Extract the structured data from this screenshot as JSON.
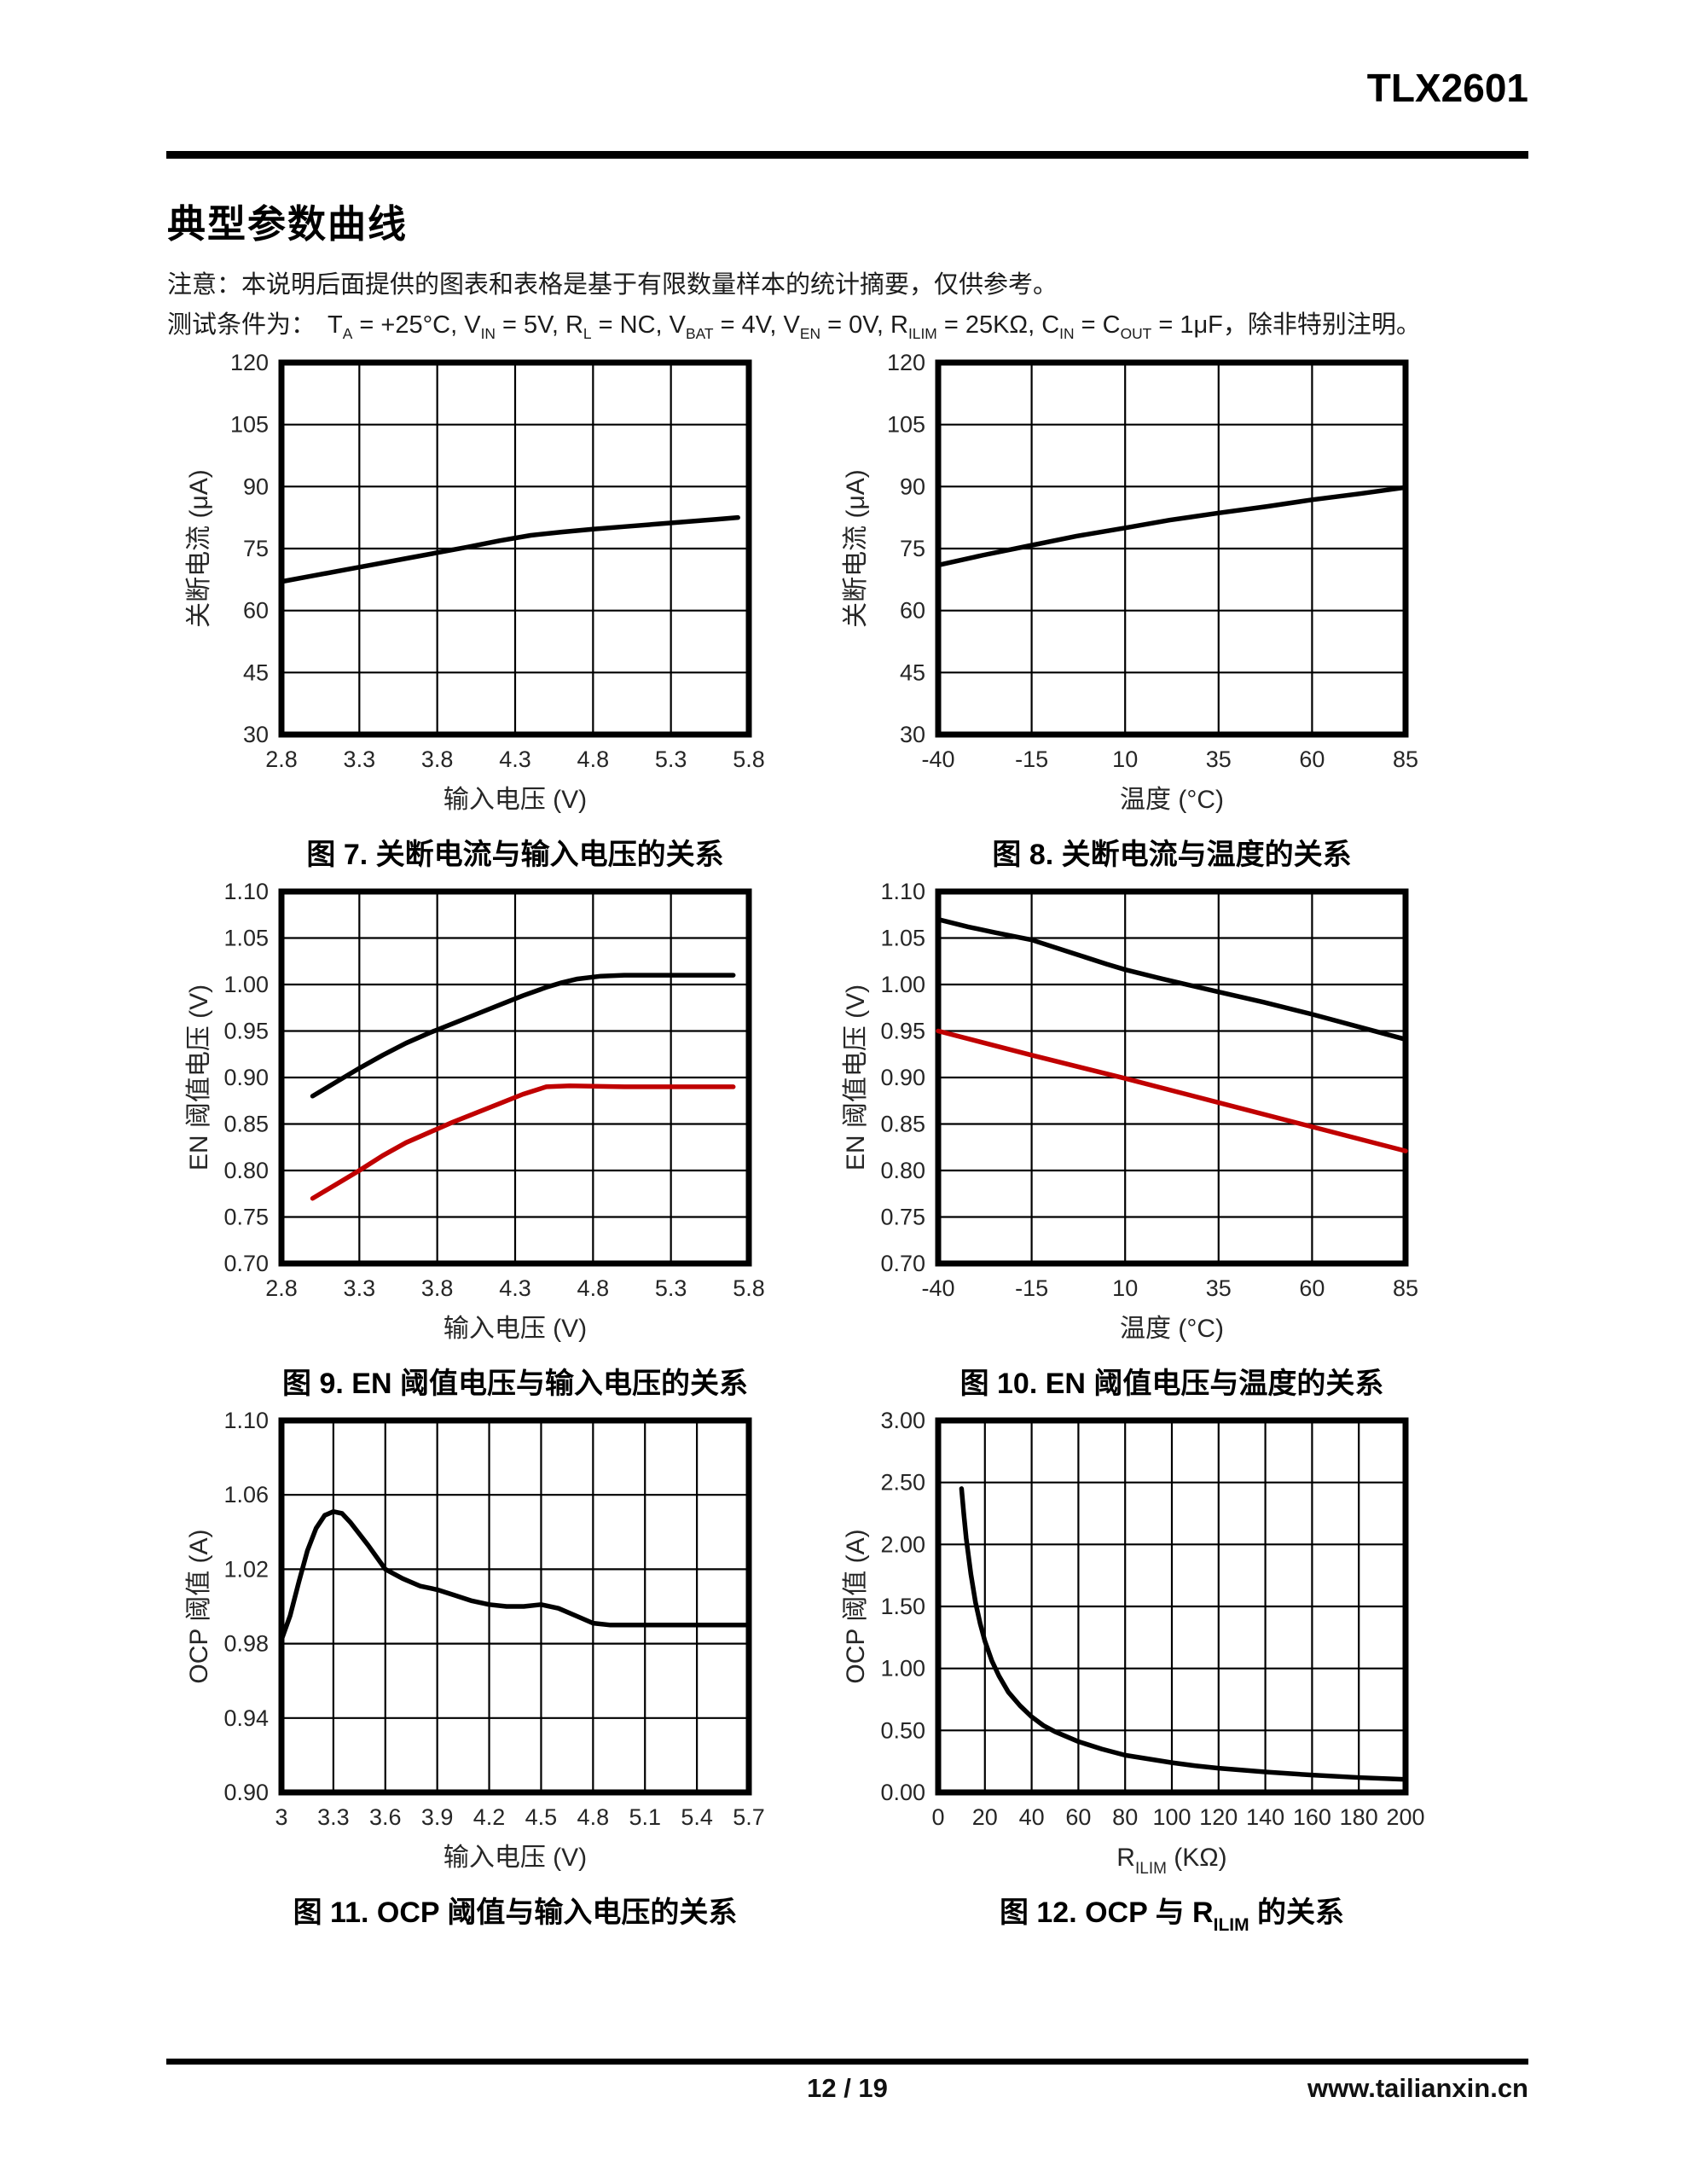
{
  "header": {
    "doc_title": "TLX2601"
  },
  "section": {
    "title": "典型参数曲线",
    "note": "注意：本说明后面提供的图表和表格是基于有限数量样本的统计摘要，仅供参考。",
    "conditions_prefix": "测试条件为：",
    "conditions_parts": [
      {
        "t": "T"
      },
      {
        "t": "A",
        "sub": true
      },
      {
        "t": " = +25°C, V"
      },
      {
        "t": "IN",
        "sub": true
      },
      {
        "t": " = 5V, R"
      },
      {
        "t": "L",
        "sub": true
      },
      {
        "t": " = NC, V"
      },
      {
        "t": "BAT",
        "sub": true
      },
      {
        "t": " = 4V, V"
      },
      {
        "t": "EN",
        "sub": true
      },
      {
        "t": " = 0V, R"
      },
      {
        "t": "ILIM",
        "sub": true
      },
      {
        "t": " = 25KΩ, C"
      },
      {
        "t": "IN",
        "sub": true
      },
      {
        "t": " = C"
      },
      {
        "t": "OUT",
        "sub": true
      },
      {
        "t": " = 1μF，除非特别注明。"
      }
    ]
  },
  "footer": {
    "page_number": "12 / 19",
    "website": "www.tailianxin.cn"
  },
  "colors": {
    "series_black": "#000000",
    "series_red": "#c00000",
    "grid": "#000000",
    "tick_text": "#262626"
  },
  "chart_data": [
    {
      "figure": "7",
      "type": "line",
      "caption_parts": [
        {
          "t": "图 7. 关断电流与输入电压的关系"
        }
      ],
      "ylabel": "关断电流 (μA)",
      "xlabel_parts": [
        {
          "t": "输入电压 (V)"
        }
      ],
      "xlim": [
        2.8,
        5.8
      ],
      "ylim": [
        30,
        120
      ],
      "grid": true,
      "legend": "none",
      "xticks": [
        {
          "v": 2.8,
          "label": "2.8"
        },
        {
          "v": 3.3,
          "label": "3.3"
        },
        {
          "v": 3.8,
          "label": "3.8"
        },
        {
          "v": 4.3,
          "label": "4.3"
        },
        {
          "v": 4.8,
          "label": "4.8"
        },
        {
          "v": 5.3,
          "label": "5.3"
        },
        {
          "v": 5.8,
          "label": "5.8"
        }
      ],
      "yticks": [
        {
          "v": 30,
          "label": "30"
        },
        {
          "v": 45,
          "label": "45"
        },
        {
          "v": 60,
          "label": "60"
        },
        {
          "v": 75,
          "label": "75"
        },
        {
          "v": 90,
          "label": "90"
        },
        {
          "v": 105,
          "label": "105"
        },
        {
          "v": 120,
          "label": "120"
        }
      ],
      "series": [
        {
          "name": "shutdown-current",
          "color": "#000000",
          "x": [
            2.8,
            3.0,
            3.2,
            3.4,
            3.6,
            3.8,
            4.0,
            4.2,
            4.4,
            4.6,
            4.8,
            5.0,
            5.2,
            5.4,
            5.6,
            5.73
          ],
          "y": [
            67,
            68.4,
            69.8,
            71.2,
            72.6,
            74,
            75.4,
            76.9,
            78.2,
            79,
            79.7,
            80.3,
            80.9,
            81.5,
            82.1,
            82.5
          ]
        }
      ]
    },
    {
      "figure": "8",
      "type": "line",
      "caption_parts": [
        {
          "t": "图 8. 关断电流与温度的关系"
        }
      ],
      "ylabel": "关断电流 (μA)",
      "xlabel_parts": [
        {
          "t": "温度 (°C)"
        }
      ],
      "xlim": [
        -40,
        85
      ],
      "ylim": [
        30,
        120
      ],
      "grid": true,
      "legend": "none",
      "xticks": [
        {
          "v": -40,
          "label": "-40"
        },
        {
          "v": -15,
          "label": "-15"
        },
        {
          "v": 10,
          "label": "10"
        },
        {
          "v": 35,
          "label": "35"
        },
        {
          "v": 60,
          "label": "60"
        },
        {
          "v": 85,
          "label": "85"
        }
      ],
      "yticks": [
        {
          "v": 30,
          "label": "30"
        },
        {
          "v": 45,
          "label": "45"
        },
        {
          "v": 60,
          "label": "60"
        },
        {
          "v": 75,
          "label": "75"
        },
        {
          "v": 90,
          "label": "90"
        },
        {
          "v": 105,
          "label": "105"
        },
        {
          "v": 120,
          "label": "120"
        }
      ],
      "series": [
        {
          "name": "shutdown-current",
          "color": "#000000",
          "x": [
            -40,
            -28,
            -15,
            -3,
            10,
            22,
            35,
            48,
            60,
            73,
            85
          ],
          "y": [
            71,
            73.4,
            75.8,
            78.0,
            80.0,
            81.9,
            83.6,
            85.2,
            86.8,
            88.3,
            89.8
          ]
        }
      ]
    },
    {
      "figure": "9",
      "type": "line",
      "caption_parts": [
        {
          "t": "图 9. EN 阈值电压与输入电压的关系"
        }
      ],
      "ylabel": "EN 阈值电压 (V)",
      "xlabel_parts": [
        {
          "t": "输入电压 (V)"
        }
      ],
      "xlim": [
        2.8,
        5.8
      ],
      "ylim": [
        0.7,
        1.1
      ],
      "grid": true,
      "legend": "none",
      "xticks": [
        {
          "v": 2.8,
          "label": "2.8"
        },
        {
          "v": 3.3,
          "label": "3.3"
        },
        {
          "v": 3.8,
          "label": "3.8"
        },
        {
          "v": 4.3,
          "label": "4.3"
        },
        {
          "v": 4.8,
          "label": "4.8"
        },
        {
          "v": 5.3,
          "label": "5.3"
        },
        {
          "v": 5.8,
          "label": "5.8"
        }
      ],
      "yticks": [
        {
          "v": 0.7,
          "label": "0.70"
        },
        {
          "v": 0.75,
          "label": "0.75"
        },
        {
          "v": 0.8,
          "label": "0.80"
        },
        {
          "v": 0.85,
          "label": "0.85"
        },
        {
          "v": 0.9,
          "label": "0.90"
        },
        {
          "v": 0.95,
          "label": "0.95"
        },
        {
          "v": 1.0,
          "label": "1.00"
        },
        {
          "v": 1.05,
          "label": "1.05"
        },
        {
          "v": 1.1,
          "label": "1.10"
        }
      ],
      "series": [
        {
          "name": "en-threshold-black",
          "color": "#000000",
          "x": [
            3.0,
            3.15,
            3.3,
            3.45,
            3.6,
            3.75,
            3.9,
            4.05,
            4.2,
            4.35,
            4.5,
            4.6,
            4.7,
            4.85,
            5.0,
            5.2,
            5.4,
            5.7
          ],
          "y": [
            0.88,
            0.895,
            0.91,
            0.924,
            0.937,
            0.948,
            0.958,
            0.968,
            0.978,
            0.988,
            0.997,
            1.002,
            1.006,
            1.009,
            1.01,
            1.01,
            1.01,
            1.01
          ]
        },
        {
          "name": "en-threshold-red",
          "color": "#c00000",
          "x": [
            3.0,
            3.15,
            3.3,
            3.45,
            3.6,
            3.75,
            3.9,
            4.05,
            4.2,
            4.35,
            4.5,
            4.65,
            5.0,
            5.4,
            5.7
          ],
          "y": [
            0.77,
            0.785,
            0.8,
            0.816,
            0.83,
            0.841,
            0.852,
            0.862,
            0.872,
            0.882,
            0.89,
            0.891,
            0.89,
            0.89,
            0.89
          ]
        }
      ]
    },
    {
      "figure": "10",
      "type": "line",
      "caption_parts": [
        {
          "t": "图 10. EN 阈值电压与温度的关系"
        }
      ],
      "ylabel": "EN 阈值电压 (V)",
      "xlabel_parts": [
        {
          "t": "温度 (°C)"
        }
      ],
      "xlim": [
        -40,
        85
      ],
      "ylim": [
        0.7,
        1.1
      ],
      "grid": true,
      "legend": "none",
      "xticks": [
        {
          "v": -40,
          "label": "-40"
        },
        {
          "v": -15,
          "label": "-15"
        },
        {
          "v": 10,
          "label": "10"
        },
        {
          "v": 35,
          "label": "35"
        },
        {
          "v": 60,
          "label": "60"
        },
        {
          "v": 85,
          "label": "85"
        }
      ],
      "yticks": [
        {
          "v": 0.7,
          "label": "0.70"
        },
        {
          "v": 0.75,
          "label": "0.75"
        },
        {
          "v": 0.8,
          "label": "0.80"
        },
        {
          "v": 0.85,
          "label": "0.85"
        },
        {
          "v": 0.9,
          "label": "0.90"
        },
        {
          "v": 0.95,
          "label": "0.95"
        },
        {
          "v": 1.0,
          "label": "1.00"
        },
        {
          "v": 1.05,
          "label": "1.05"
        },
        {
          "v": 1.1,
          "label": "1.10"
        }
      ],
      "series": [
        {
          "name": "en-threshold-black",
          "color": "#000000",
          "x": [
            -40,
            -32,
            -25,
            -15,
            -5,
            5,
            10,
            20,
            35,
            47,
            60,
            72,
            85
          ],
          "y": [
            1.07,
            1.062,
            1.056,
            1.048,
            1.035,
            1.022,
            1.016,
            1.006,
            0.992,
            0.981,
            0.968,
            0.955,
            0.941
          ]
        },
        {
          "name": "en-threshold-red",
          "color": "#c00000",
          "x": [
            -40,
            -15,
            10,
            35,
            60,
            85
          ],
          "y": [
            0.95,
            0.924,
            0.899,
            0.873,
            0.847,
            0.821
          ]
        }
      ]
    },
    {
      "figure": "11",
      "type": "line",
      "caption_parts": [
        {
          "t": "图 11. OCP 阈值与输入电压的关系"
        }
      ],
      "ylabel": "OCP 阈值 (A)",
      "xlabel_parts": [
        {
          "t": "输入电压 (V)"
        }
      ],
      "xlim": [
        3.0,
        5.7
      ],
      "ylim": [
        0.9,
        1.1
      ],
      "grid": true,
      "legend": "none",
      "xticks": [
        {
          "v": 3.0,
          "label": "3"
        },
        {
          "v": 3.3,
          "label": "3.3"
        },
        {
          "v": 3.6,
          "label": "3.6"
        },
        {
          "v": 3.9,
          "label": "3.9"
        },
        {
          "v": 4.2,
          "label": "4.2"
        },
        {
          "v": 4.5,
          "label": "4.5"
        },
        {
          "v": 4.8,
          "label": "4.8"
        },
        {
          "v": 5.1,
          "label": "5.1"
        },
        {
          "v": 5.4,
          "label": "5.4"
        },
        {
          "v": 5.7,
          "label": "5.7"
        }
      ],
      "yticks": [
        {
          "v": 0.9,
          "label": "0.90"
        },
        {
          "v": 0.94,
          "label": "0.94"
        },
        {
          "v": 0.98,
          "label": "0.98"
        },
        {
          "v": 1.02,
          "label": "1.02"
        },
        {
          "v": 1.06,
          "label": "1.06"
        },
        {
          "v": 1.1,
          "label": "1.10"
        }
      ],
      "series": [
        {
          "name": "ocp-threshold",
          "color": "#000000",
          "x": [
            3.0,
            3.05,
            3.1,
            3.15,
            3.2,
            3.25,
            3.3,
            3.35,
            3.4,
            3.5,
            3.6,
            3.7,
            3.8,
            3.9,
            4.0,
            4.1,
            4.2,
            4.3,
            4.4,
            4.5,
            4.6,
            4.7,
            4.8,
            4.9,
            5.0,
            5.2,
            5.4,
            5.7
          ],
          "y": [
            0.982,
            0.995,
            1.013,
            1.03,
            1.042,
            1.049,
            1.051,
            1.05,
            1.045,
            1.033,
            1.02,
            1.015,
            1.011,
            1.009,
            1.006,
            1.003,
            1.001,
            1.0,
            1.0,
            1.001,
            0.999,
            0.995,
            0.991,
            0.99,
            0.99,
            0.99,
            0.99,
            0.99
          ]
        }
      ]
    },
    {
      "figure": "12",
      "type": "line",
      "caption_parts": [
        {
          "t": "图 12. OCP 与 R"
        },
        {
          "t": "ILIM",
          "sub": true
        },
        {
          "t": " 的关系"
        }
      ],
      "ylabel": "OCP 阈值 (A)",
      "xlabel_parts": [
        {
          "t": "R"
        },
        {
          "t": "ILIM",
          "sub": true
        },
        {
          "t": " (KΩ)"
        }
      ],
      "xlim": [
        0,
        200
      ],
      "ylim": [
        0.0,
        3.0
      ],
      "grid": true,
      "legend": "none",
      "xticks": [
        {
          "v": 0,
          "label": "0"
        },
        {
          "v": 20,
          "label": "20"
        },
        {
          "v": 40,
          "label": "40"
        },
        {
          "v": 60,
          "label": "60"
        },
        {
          "v": 80,
          "label": "80"
        },
        {
          "v": 100,
          "label": "100"
        },
        {
          "v": 120,
          "label": "120"
        },
        {
          "v": 140,
          "label": "140"
        },
        {
          "v": 160,
          "label": "160"
        },
        {
          "v": 180,
          "label": "180"
        },
        {
          "v": 200,
          "label": "200"
        }
      ],
      "yticks": [
        {
          "v": 0.0,
          "label": "0.00"
        },
        {
          "v": 0.5,
          "label": "0.50"
        },
        {
          "v": 1.0,
          "label": "1.00"
        },
        {
          "v": 1.5,
          "label": "1.50"
        },
        {
          "v": 2.0,
          "label": "2.00"
        },
        {
          "v": 2.5,
          "label": "2.50"
        },
        {
          "v": 3.0,
          "label": "3.00"
        }
      ],
      "series": [
        {
          "name": "ocp-vs-rilim",
          "color": "#000000",
          "x": [
            10,
            11,
            12,
            14,
            16,
            18,
            20,
            23,
            26,
            30,
            35,
            40,
            45,
            50,
            60,
            70,
            80,
            90,
            100,
            110,
            120,
            140,
            160,
            180,
            200
          ],
          "y": [
            2.45,
            2.24,
            2.05,
            1.76,
            1.53,
            1.36,
            1.22,
            1.06,
            0.94,
            0.81,
            0.7,
            0.61,
            0.54,
            0.49,
            0.41,
            0.35,
            0.3,
            0.27,
            0.24,
            0.215,
            0.195,
            0.165,
            0.14,
            0.12,
            0.105
          ]
        }
      ]
    }
  ]
}
